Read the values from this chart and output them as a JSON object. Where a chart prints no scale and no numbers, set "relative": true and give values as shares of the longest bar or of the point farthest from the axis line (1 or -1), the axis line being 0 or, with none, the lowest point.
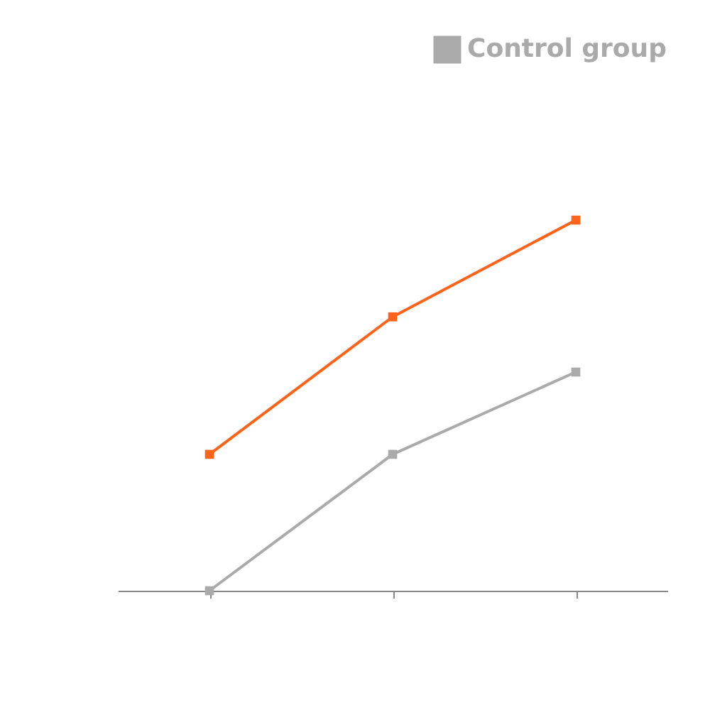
{
  "chart_data": {
    "type": "line",
    "relative": true,
    "categories": [
      null,
      null,
      null
    ],
    "marker": "square",
    "legend": "top right",
    "series": [
      {
        "name": "Control group",
        "color": "#aaaaaa",
        "values": [
          0,
          0.368,
          0.59
        ]
      },
      {
        "color": "#ff6319",
        "values": [
          0.368,
          0.739,
          1
        ]
      }
    ]
  }
}
